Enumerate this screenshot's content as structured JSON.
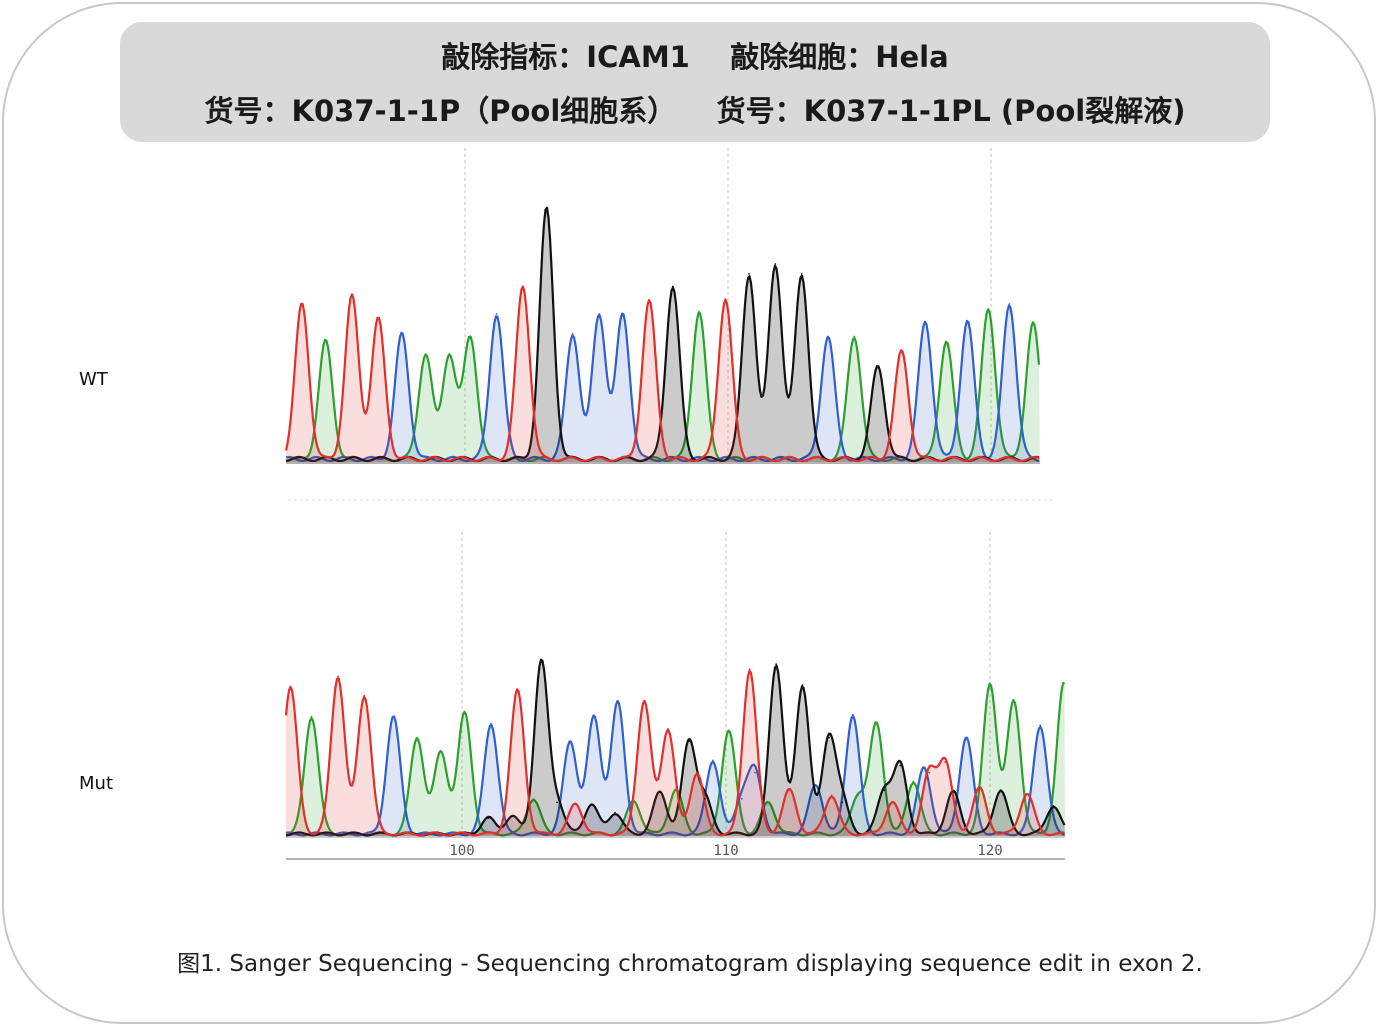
{
  "header": {
    "line1": "敲除指标：ICAM1    敲除细胞：Hela",
    "line2": "货号：K037-1-1P（Pool细胞系）    货号：K037-1-1PL (Pool裂解液)"
  },
  "caption": "图1. Sanger Sequencing - Sequencing chromatogram displaying sequence edit in exon 2.",
  "colors": {
    "A": "#2ca02c",
    "C": "#2f5fd0",
    "G": "#111111",
    "T": "#e0302a",
    "frame": "#c8c8c8",
    "header_bg": "#d9d9d9"
  },
  "chart_data": [
    {
      "type": "sanger-chromatogram",
      "panel_label": "WT",
      "x_ticks": [],
      "peaks": [
        {
          "pos": 93.8,
          "base": "T",
          "h": 0.62
        },
        {
          "pos": 94.7,
          "base": "A",
          "h": 0.47
        },
        {
          "pos": 95.7,
          "base": "T",
          "h": 0.65
        },
        {
          "pos": 96.7,
          "base": "T",
          "h": 0.56
        },
        {
          "pos": 97.6,
          "base": "C",
          "h": 0.5
        },
        {
          "pos": 98.5,
          "base": "A",
          "h": 0.42
        },
        {
          "pos": 99.4,
          "base": "A",
          "h": 0.42
        },
        {
          "pos": 100.2,
          "base": "A",
          "h": 0.49
        },
        {
          "pos": 101.2,
          "base": "C",
          "h": 0.58
        },
        {
          "pos": 102.2,
          "base": "T",
          "h": 0.69
        },
        {
          "pos": 103.1,
          "base": "G",
          "h": 1.0
        },
        {
          "pos": 104.1,
          "base": "C",
          "h": 0.5
        },
        {
          "pos": 105.1,
          "base": "C",
          "h": 0.58
        },
        {
          "pos": 106.0,
          "base": "C",
          "h": 0.58
        },
        {
          "pos": 107.0,
          "base": "T",
          "h": 0.63
        },
        {
          "pos": 107.9,
          "base": "G",
          "h": 0.69
        },
        {
          "pos": 108.9,
          "base": "A",
          "h": 0.59
        },
        {
          "pos": 109.9,
          "base": "T",
          "h": 0.64
        },
        {
          "pos": 110.8,
          "base": "G",
          "h": 0.74
        },
        {
          "pos": 111.8,
          "base": "G",
          "h": 0.78
        },
        {
          "pos": 112.8,
          "base": "G",
          "h": 0.74
        },
        {
          "pos": 113.8,
          "base": "C",
          "h": 0.49
        },
        {
          "pos": 114.8,
          "base": "A",
          "h": 0.49
        },
        {
          "pos": 115.7,
          "base": "G",
          "h": 0.37
        },
        {
          "pos": 116.6,
          "base": "T",
          "h": 0.43
        },
        {
          "pos": 117.5,
          "base": "C",
          "h": 0.55
        },
        {
          "pos": 118.3,
          "base": "A",
          "h": 0.47
        },
        {
          "pos": 119.1,
          "base": "C",
          "h": 0.55
        },
        {
          "pos": 119.9,
          "base": "A",
          "h": 0.6
        },
        {
          "pos": 120.7,
          "base": "C",
          "h": 0.62
        },
        {
          "pos": 121.6,
          "base": "A",
          "h": 0.54
        }
      ],
      "secondary_peaks": []
    },
    {
      "type": "sanger-chromatogram",
      "panel_label": "Mut",
      "x_ticks": [
        "100",
        "110",
        "120"
      ],
      "peaks": [
        {
          "pos": 93.5,
          "base": "T",
          "h": 0.84
        },
        {
          "pos": 94.3,
          "base": "A",
          "h": 0.67
        },
        {
          "pos": 95.3,
          "base": "T",
          "h": 0.9
        },
        {
          "pos": 96.3,
          "base": "T",
          "h": 0.79
        },
        {
          "pos": 97.4,
          "base": "C",
          "h": 0.67
        },
        {
          "pos": 98.3,
          "base": "A",
          "h": 0.55
        },
        {
          "pos": 99.2,
          "base": "A",
          "h": 0.47
        },
        {
          "pos": 100.1,
          "base": "A",
          "h": 0.69
        },
        {
          "pos": 101.1,
          "base": "C",
          "h": 0.63
        },
        {
          "pos": 102.1,
          "base": "T",
          "h": 0.82
        },
        {
          "pos": 103.0,
          "base": "G",
          "h": 0.98
        },
        {
          "pos": 104.1,
          "base": "C",
          "h": 0.53
        },
        {
          "pos": 105.0,
          "base": "C",
          "h": 0.67
        },
        {
          "pos": 105.9,
          "base": "C",
          "h": 0.75
        },
        {
          "pos": 106.9,
          "base": "T",
          "h": 0.76
        },
        {
          "pos": 107.8,
          "base": "T",
          "h": 0.6
        },
        {
          "pos": 108.6,
          "base": "G",
          "h": 0.53
        },
        {
          "pos": 109.5,
          "base": "C",
          "h": 0.42
        },
        {
          "pos": 110.1,
          "base": "A",
          "h": 0.59
        },
        {
          "pos": 110.9,
          "base": "T",
          "h": 0.94
        },
        {
          "pos": 111.9,
          "base": "G",
          "h": 0.97
        },
        {
          "pos": 112.9,
          "base": "G",
          "h": 0.85
        },
        {
          "pos": 113.9,
          "base": "G",
          "h": 0.55
        },
        {
          "pos": 114.8,
          "base": "C",
          "h": 0.68
        },
        {
          "pos": 115.7,
          "base": "A",
          "h": 0.63
        },
        {
          "pos": 116.6,
          "base": "G",
          "h": 0.39
        },
        {
          "pos": 117.5,
          "base": "C",
          "h": 0.38
        },
        {
          "pos": 118.3,
          "base": "T",
          "h": 0.41
        },
        {
          "pos": 119.1,
          "base": "C",
          "h": 0.55
        },
        {
          "pos": 120.0,
          "base": "A",
          "h": 0.86
        },
        {
          "pos": 120.9,
          "base": "A",
          "h": 0.76
        },
        {
          "pos": 121.9,
          "base": "C",
          "h": 0.62
        },
        {
          "pos": 122.8,
          "base": "A",
          "h": 0.86
        }
      ],
      "secondary_peaks": [
        {
          "pos": 101.0,
          "base": "G",
          "h": 0.09
        },
        {
          "pos": 101.9,
          "base": "G",
          "h": 0.1
        },
        {
          "pos": 102.7,
          "base": "A",
          "h": 0.2
        },
        {
          "pos": 103.6,
          "base": "G",
          "h": 0.18
        },
        {
          "pos": 104.3,
          "base": "T",
          "h": 0.17
        },
        {
          "pos": 104.9,
          "base": "G",
          "h": 0.17
        },
        {
          "pos": 105.8,
          "base": "G",
          "h": 0.12
        },
        {
          "pos": 106.5,
          "base": "A",
          "h": 0.19
        },
        {
          "pos": 107.5,
          "base": "G",
          "h": 0.24
        },
        {
          "pos": 108.1,
          "base": "A",
          "h": 0.25
        },
        {
          "pos": 108.9,
          "base": "T",
          "h": 0.35
        },
        {
          "pos": 109.2,
          "base": "G",
          "h": 0.2
        },
        {
          "pos": 110.6,
          "base": "C",
          "h": 0.2
        },
        {
          "pos": 111.1,
          "base": "C",
          "h": 0.35
        },
        {
          "pos": 111.6,
          "base": "A",
          "h": 0.18
        },
        {
          "pos": 112.4,
          "base": "T",
          "h": 0.25
        },
        {
          "pos": 113.4,
          "base": "C",
          "h": 0.28
        },
        {
          "pos": 114.0,
          "base": "T",
          "h": 0.22
        },
        {
          "pos": 114.4,
          "base": "G",
          "h": 0.18
        },
        {
          "pos": 115.0,
          "base": "A",
          "h": 0.22
        },
        {
          "pos": 116.0,
          "base": "G",
          "h": 0.25
        },
        {
          "pos": 116.3,
          "base": "T",
          "h": 0.18
        },
        {
          "pos": 117.1,
          "base": "A",
          "h": 0.3
        },
        {
          "pos": 117.7,
          "base": "T",
          "h": 0.35
        },
        {
          "pos": 118.6,
          "base": "G",
          "h": 0.24
        },
        {
          "pos": 119.6,
          "base": "T",
          "h": 0.26
        },
        {
          "pos": 120.4,
          "base": "G",
          "h": 0.25
        },
        {
          "pos": 121.4,
          "base": "T",
          "h": 0.23
        },
        {
          "pos": 122.4,
          "base": "G",
          "h": 0.16
        }
      ]
    }
  ]
}
